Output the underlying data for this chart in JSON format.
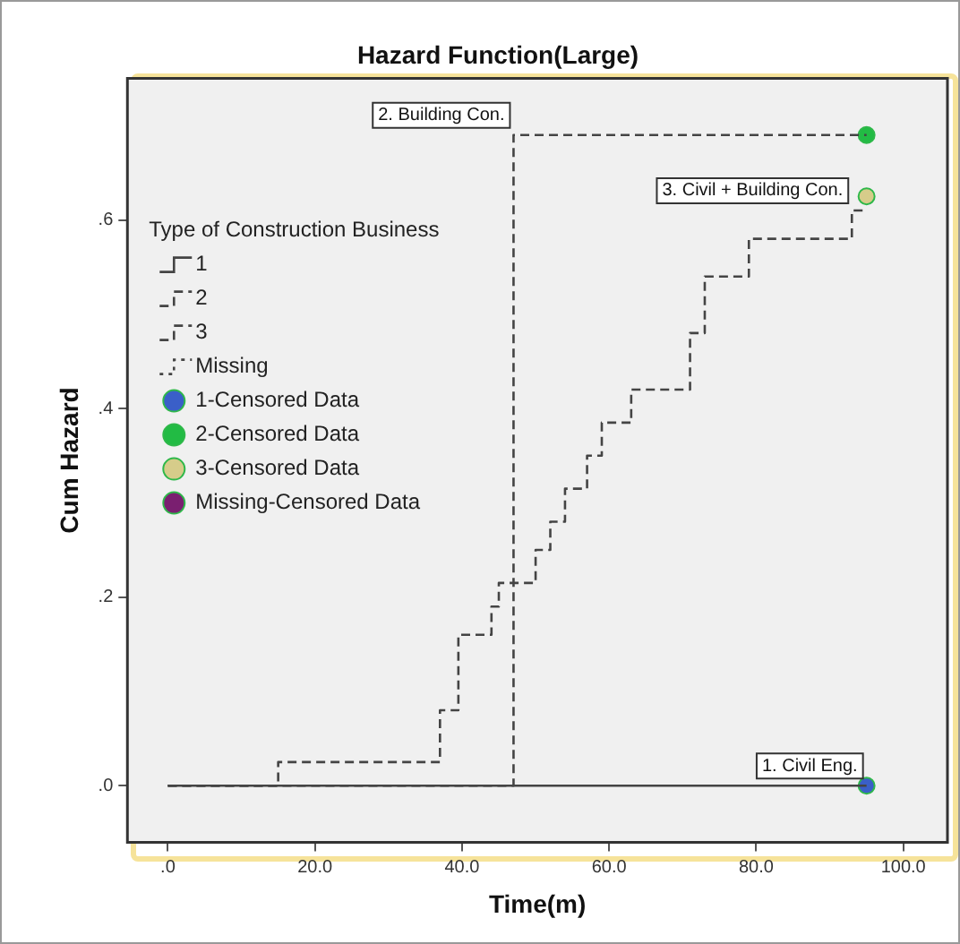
{
  "chart_data": {
    "type": "step",
    "title": "Hazard Function(Large)",
    "xlabel": "Time(m)",
    "ylabel": "Cum Hazard",
    "legend_title": "Type of Construction Business",
    "legend": "top left",
    "grid": false,
    "xlim": [
      -5.5,
      106
    ],
    "ylim": [
      -0.06,
      0.75
    ],
    "xticks": [
      {
        "value": 0,
        "label": ".0"
      },
      {
        "value": 20,
        "label": "20.0"
      },
      {
        "value": 40,
        "label": "40.0"
      },
      {
        "value": 60,
        "label": "60.0"
      },
      {
        "value": 80,
        "label": "80.0"
      },
      {
        "value": 100,
        "label": "100.0"
      }
    ],
    "yticks": [
      {
        "value": 0,
        "label": ".0"
      },
      {
        "value": 0.2,
        "label": ".2"
      },
      {
        "value": 0.4,
        "label": ".4"
      },
      {
        "value": 0.6,
        "label": ".6"
      }
    ],
    "series": [
      {
        "name": "1",
        "color": "#444444",
        "line_style": "solid",
        "marker": "none",
        "x": [
          0,
          95
        ],
        "values": [
          0,
          0
        ]
      },
      {
        "name": "2",
        "color": "#444444",
        "line_style": "dashed",
        "marker": "none",
        "x": [
          0,
          47,
          95
        ],
        "values": [
          0,
          0.69,
          0.69
        ]
      },
      {
        "name": "3",
        "color": "#444444",
        "line_style": "dashed",
        "marker": "none",
        "x": [
          0,
          15,
          37,
          39.5,
          44,
          45,
          50,
          52,
          54,
          57,
          59,
          63,
          71,
          73,
          79,
          93,
          95
        ],
        "values": [
          0,
          0.025,
          0.08,
          0.16,
          0.19,
          0.215,
          0.25,
          0.28,
          0.315,
          0.35,
          0.385,
          0.42,
          0.48,
          0.54,
          0.58,
          0.61,
          0.61
        ]
      },
      {
        "name": "Missing",
        "color": "#444444",
        "line_style": "dotted",
        "marker": "none"
      },
      {
        "name": "1-Censored Data",
        "type": "scatter",
        "color": "#3a5fc8",
        "marker": "circle",
        "x": [
          95
        ],
        "values": [
          0
        ]
      },
      {
        "name": "2-Censored Data",
        "type": "scatter",
        "color": "#22bb44",
        "marker": "circle",
        "x": [
          95
        ],
        "values": [
          0.69
        ]
      },
      {
        "name": "3-Censored Data",
        "type": "scatter",
        "color": "#d6cc8a",
        "marker": "circle",
        "x": [
          95
        ],
        "values": [
          0.625
        ]
      },
      {
        "name": "Missing-Censored Data",
        "type": "scatter",
        "color": "#7a1f70",
        "marker": "circle"
      }
    ],
    "annotations": [
      {
        "text": "1. Civil Eng.",
        "x": 95,
        "y": 0
      },
      {
        "text": "2. Building Con.",
        "x": 47,
        "y": 0.69
      },
      {
        "text": "3. Civil + Building Con.",
        "x": 93,
        "y": 0.61
      }
    ]
  }
}
